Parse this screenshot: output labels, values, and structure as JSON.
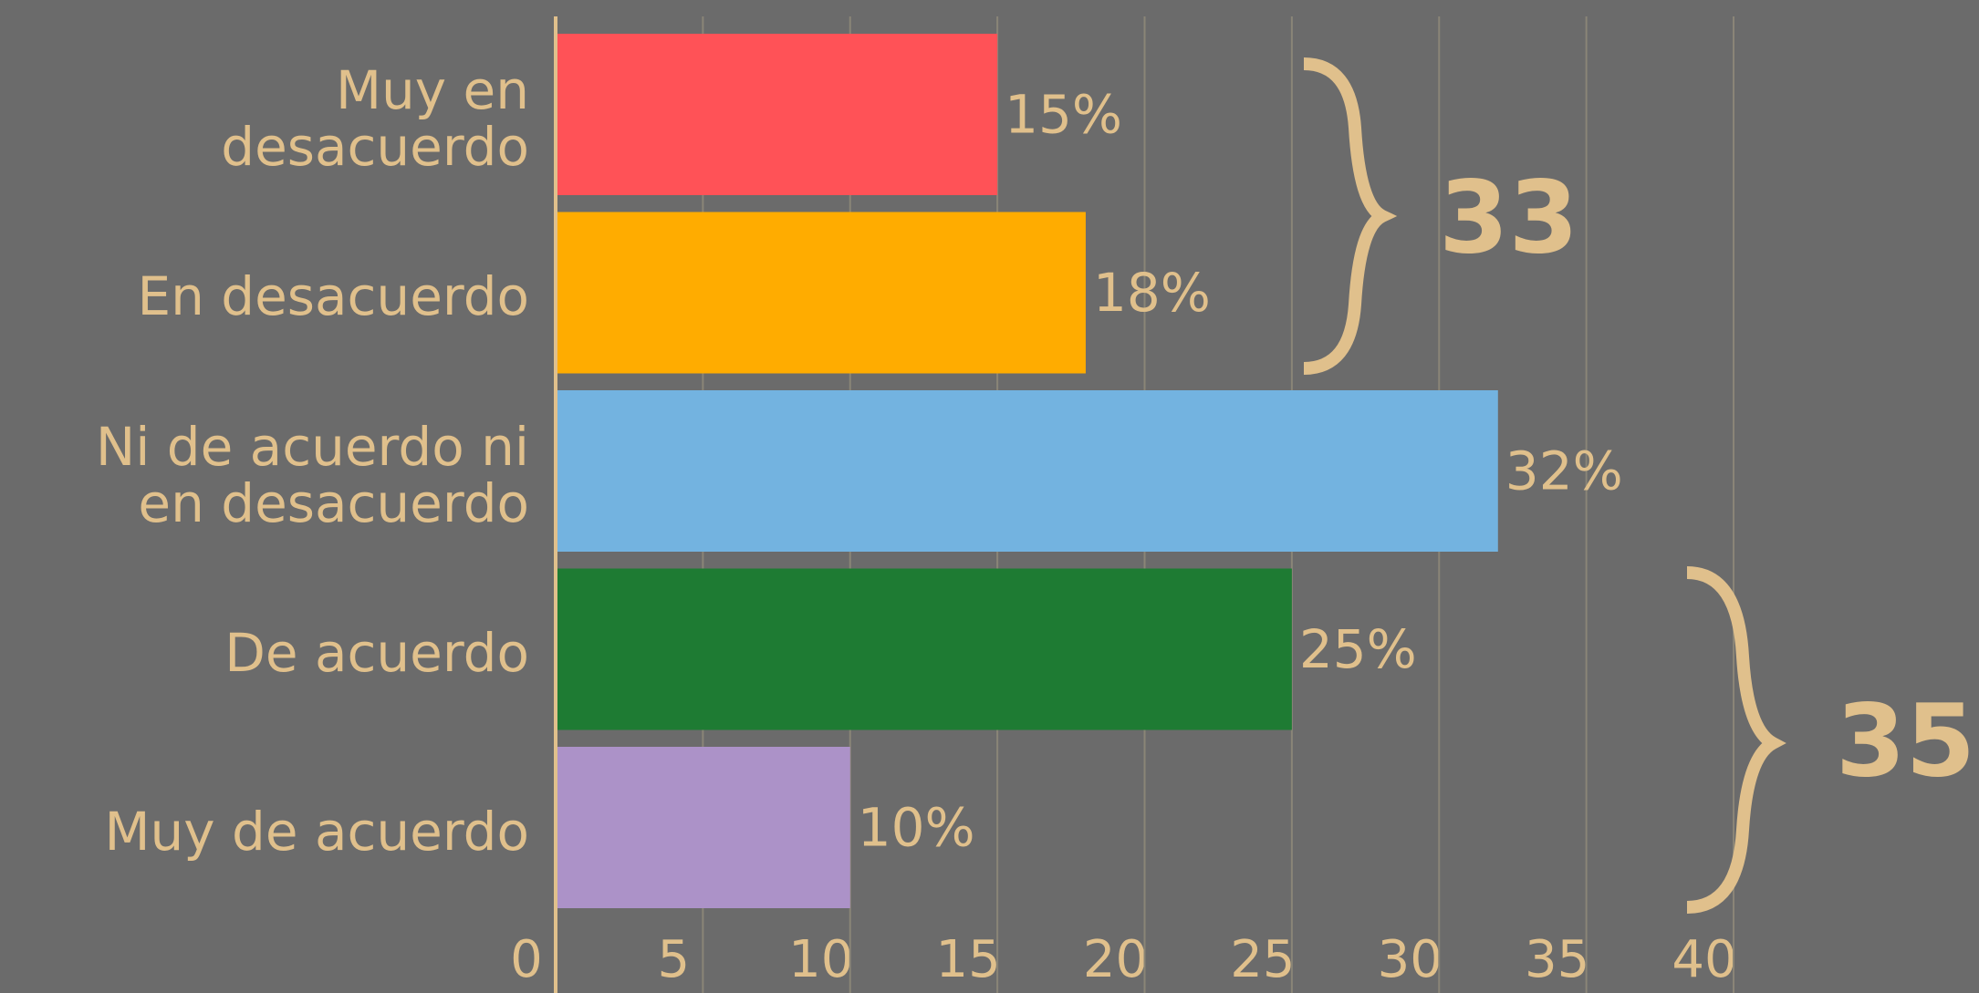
{
  "chart_data": {
    "type": "bar",
    "orientation": "horizontal",
    "categories": [
      "Muy en desacuerdo",
      "En desacuerdo",
      "Ni de acuerdo ni en desacuerdo",
      "De acuerdo",
      "Muy de acuerdo"
    ],
    "values": [
      15,
      18,
      32,
      25,
      10
    ],
    "value_labels": [
      "15%",
      "18%",
      "32%",
      "25%",
      "10%"
    ],
    "colors": [
      "#ff5257",
      "#ffac00",
      "#73b3e0",
      "#1e7b33",
      "#ac92c8"
    ],
    "xlim": [
      0,
      40
    ],
    "xticks": [
      0,
      5,
      10,
      15,
      20,
      25,
      30,
      35,
      40
    ],
    "grid": true,
    "annotations": [
      {
        "text": "33"
      },
      {
        "text": "35"
      }
    ]
  }
}
